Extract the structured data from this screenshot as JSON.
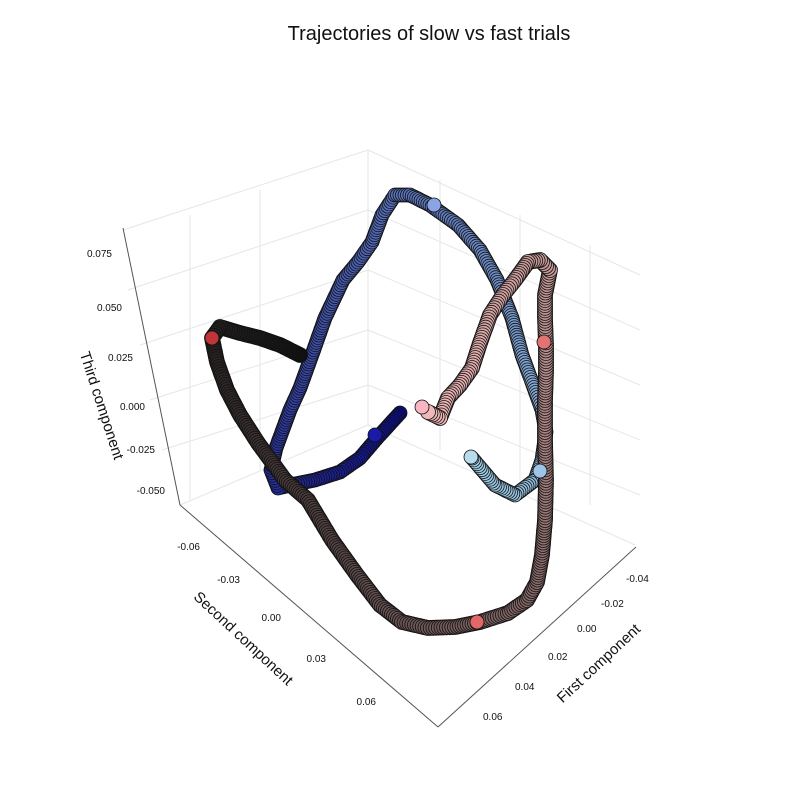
{
  "chart_data": {
    "type": "scatter",
    "projection": "3d",
    "title": "Trajectories of slow vs fast trials",
    "axes": {
      "x": {
        "label": "First component",
        "ticks": [
          "-0.04",
          "-0.02",
          "0.00",
          "0.02",
          "0.04",
          "0.06"
        ]
      },
      "y": {
        "label": "Second component",
        "ticks": [
          "-0.06",
          "-0.03",
          "0.00",
          "0.03",
          "0.06"
        ]
      },
      "z": {
        "label": "Third component",
        "ticks": [
          "0.075",
          "0.050",
          "0.025",
          "0.000",
          "-0.025",
          "-0.050"
        ]
      }
    },
    "grid": true,
    "series": [
      {
        "colors": {
          "start": "#0a0a8a",
          "end": "#9fcfe6"
        },
        "markers": [
          "#1a1aa8",
          "#8aa4e6",
          "#9ec4e8",
          "#b8dcec"
        ],
        "trajectory": [
          [
            400,
            413
          ],
          [
            378,
            437
          ],
          [
            360,
            458
          ],
          [
            340,
            472
          ],
          [
            315,
            480
          ],
          [
            295,
            484
          ],
          [
            278,
            488
          ],
          [
            271,
            470
          ],
          [
            276,
            448
          ],
          [
            290,
            410
          ],
          [
            300,
            388
          ],
          [
            313,
            352
          ],
          [
            325,
            318
          ],
          [
            343,
            280
          ],
          [
            358,
            262
          ],
          [
            372,
            242
          ],
          [
            382,
            215
          ],
          [
            395,
            195
          ],
          [
            410,
            195
          ],
          [
            430,
            205
          ],
          [
            458,
            225
          ],
          [
            480,
            250
          ],
          [
            497,
            280
          ],
          [
            512,
            318
          ],
          [
            522,
            355
          ],
          [
            533,
            385
          ],
          [
            542,
            410
          ],
          [
            546,
            432
          ],
          [
            542,
            460
          ],
          [
            535,
            480
          ],
          [
            515,
            495
          ],
          [
            495,
            485
          ],
          [
            472,
            458
          ]
        ]
      },
      {
        "colors": {
          "start": "#111111",
          "end": "#f0b8b8"
        },
        "markers": [
          "#f7b6c2",
          "#c0353a",
          "#e06868",
          "#e37272"
        ],
        "trajectory_bright": [
          [
            300,
            355
          ],
          [
            280,
            345
          ],
          [
            260,
            338
          ],
          [
            240,
            333
          ],
          [
            220,
            327
          ],
          [
            212,
            338
          ],
          [
            217,
            362
          ],
          [
            227,
            390
          ],
          [
            240,
            415
          ],
          [
            258,
            443
          ],
          [
            285,
            480
          ],
          [
            308,
            500
          ],
          [
            332,
            540
          ],
          [
            357,
            575
          ],
          [
            380,
            605
          ],
          [
            402,
            622
          ],
          [
            428,
            628
          ],
          [
            455,
            627
          ],
          [
            480,
            622
          ],
          [
            508,
            613
          ],
          [
            527,
            600
          ],
          [
            537,
            582
          ],
          [
            542,
            555
          ],
          [
            545,
            520
          ],
          [
            546,
            480
          ],
          [
            545,
            440
          ],
          [
            545,
            400
          ],
          [
            546,
            372
          ],
          [
            546,
            345
          ],
          [
            545,
            318
          ],
          [
            545,
            295
          ],
          [
            550,
            270
          ],
          [
            540,
            260
          ],
          [
            528,
            262
          ],
          [
            515,
            280
          ],
          [
            503,
            295
          ],
          [
            490,
            315
          ],
          [
            480,
            343
          ],
          [
            472,
            368
          ],
          [
            460,
            385
          ],
          [
            448,
            398
          ],
          [
            440,
            418
          ],
          [
            428,
            412
          ]
        ]
      }
    ]
  }
}
